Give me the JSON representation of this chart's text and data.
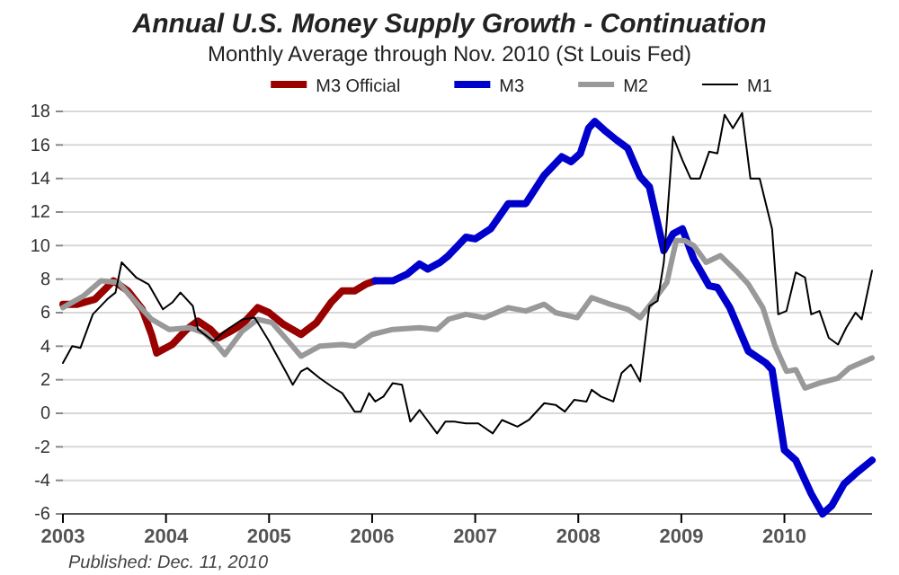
{
  "chart_data": {
    "type": "line",
    "title": "Annual U.S. Money Supply Growth - Continuation",
    "subtitle": "Monthly Average through Nov. 2010  (St Louis Fed)",
    "annotations": [
      "Published: Dec. 11, 2010"
    ],
    "xlim": [
      2003,
      2010.85
    ],
    "xticks": [
      {
        "value": 2003,
        "label": "2003"
      },
      {
        "value": 2004,
        "label": "2004"
      },
      {
        "value": 2005,
        "label": "2005"
      },
      {
        "value": 2006,
        "label": "2006"
      },
      {
        "value": 2007,
        "label": "2007"
      },
      {
        "value": 2008,
        "label": "2008"
      },
      {
        "value": 2009,
        "label": "2009"
      },
      {
        "value": 2010,
        "label": "2010"
      }
    ],
    "ylim": [
      -6,
      18
    ],
    "yticks": [
      -6,
      -4,
      -2,
      0,
      2,
      4,
      6,
      8,
      10,
      12,
      14,
      16,
      18
    ],
    "grid": "y",
    "legend": "top",
    "marker": "none",
    "series": [
      {
        "name": "M3 Official",
        "color": "#990000",
        "x": [
          2003.0,
          2003.14,
          2003.31,
          2003.49,
          2003.63,
          2003.77,
          2003.86,
          2003.91,
          2004.06,
          2004.2,
          2004.31,
          2004.43,
          2004.51,
          2004.63,
          2004.74,
          2004.89,
          2005.0,
          2005.14,
          2005.31,
          2005.46,
          2005.6,
          2005.71,
          2005.83,
          2005.94,
          2006.03
        ],
        "values": [
          6.5,
          6.5,
          6.8,
          7.9,
          7.3,
          6.2,
          4.7,
          3.6,
          4.1,
          5.0,
          5.5,
          5.0,
          4.5,
          4.9,
          5.3,
          6.3,
          6.0,
          5.3,
          4.7,
          5.4,
          6.6,
          7.3,
          7.3,
          7.7,
          7.9
        ]
      },
      {
        "name": "M3",
        "color": "#0000cc",
        "x": [
          2006.03,
          2006.2,
          2006.34,
          2006.46,
          2006.54,
          2006.66,
          2006.74,
          2006.91,
          2007.0,
          2007.15,
          2007.32,
          2007.49,
          2007.67,
          2007.84,
          2007.93,
          2008.02,
          2008.1,
          2008.16,
          2008.25,
          2008.37,
          2008.48,
          2008.6,
          2008.69,
          2008.83,
          2008.92,
          2009.01,
          2009.12,
          2009.27,
          2009.35,
          2009.47,
          2009.65,
          2009.82,
          2009.88,
          2010.0,
          2010.11,
          2010.26,
          2010.37,
          2010.46,
          2010.58,
          2010.69,
          2010.85
        ],
        "values": [
          7.9,
          7.9,
          8.3,
          8.9,
          8.6,
          9.0,
          9.4,
          10.5,
          10.4,
          11.0,
          12.5,
          12.5,
          14.2,
          15.3,
          15.0,
          15.5,
          17.0,
          17.4,
          16.9,
          16.3,
          15.8,
          14.1,
          13.5,
          9.7,
          10.7,
          11.0,
          9.2,
          7.6,
          7.5,
          6.3,
          3.7,
          3.0,
          2.6,
          -2.2,
          -2.8,
          -4.8,
          -6.0,
          -5.5,
          -4.2,
          -3.6,
          -2.8
        ]
      },
      {
        "name": "M2",
        "color": "#999999",
        "x": [
          2003.0,
          2003.2,
          2003.37,
          2003.54,
          2003.71,
          2003.86,
          2004.03,
          2004.23,
          2004.37,
          2004.49,
          2004.57,
          2004.74,
          2004.89,
          2005.03,
          2005.2,
          2005.31,
          2005.49,
          2005.71,
          2005.83,
          2006.0,
          2006.2,
          2006.46,
          2006.63,
          2006.74,
          2006.91,
          2007.09,
          2007.32,
          2007.49,
          2007.67,
          2007.78,
          2007.99,
          2008.13,
          2008.31,
          2008.48,
          2008.6,
          2008.74,
          2008.86,
          2008.95,
          2009.03,
          2009.12,
          2009.24,
          2009.38,
          2009.53,
          2009.65,
          2009.79,
          2009.91,
          2010.02,
          2010.11,
          2010.2,
          2010.34,
          2010.52,
          2010.63,
          2010.85
        ],
        "values": [
          6.3,
          7.0,
          7.9,
          7.8,
          6.6,
          5.6,
          5.0,
          5.1,
          4.8,
          4.1,
          3.5,
          4.9,
          5.6,
          5.4,
          4.2,
          3.4,
          4.0,
          4.1,
          4.0,
          4.7,
          5.0,
          5.1,
          5.0,
          5.6,
          5.9,
          5.7,
          6.3,
          6.1,
          6.5,
          6.0,
          5.7,
          6.9,
          6.5,
          6.2,
          5.7,
          6.8,
          7.8,
          10.3,
          10.3,
          10.0,
          9.0,
          9.4,
          8.5,
          7.7,
          6.3,
          4.0,
          2.5,
          2.6,
          1.5,
          1.8,
          2.1,
          2.7,
          3.3
        ]
      },
      {
        "name": "M1",
        "color": "#000000",
        "x": [
          2003.0,
          2003.09,
          2003.17,
          2003.29,
          2003.43,
          2003.51,
          2003.57,
          2003.71,
          2003.83,
          2003.97,
          2004.06,
          2004.14,
          2004.26,
          2004.31,
          2004.46,
          2004.57,
          2004.74,
          2004.86,
          2005.0,
          2005.17,
          2005.23,
          2005.31,
          2005.37,
          2005.49,
          2005.63,
          2005.71,
          2005.83,
          2005.89,
          2005.97,
          2006.03,
          2006.11,
          2006.2,
          2006.29,
          2006.37,
          2006.46,
          2006.63,
          2006.71,
          2006.8,
          2006.91,
          2007.03,
          2007.17,
          2007.26,
          2007.41,
          2007.52,
          2007.67,
          2007.78,
          2007.87,
          2007.96,
          2008.08,
          2008.13,
          2008.22,
          2008.34,
          2008.42,
          2008.51,
          2008.6,
          2008.69,
          2008.77,
          2008.83,
          2008.92,
          2009.01,
          2009.09,
          2009.18,
          2009.27,
          2009.35,
          2009.42,
          2009.5,
          2009.59,
          2009.67,
          2009.76,
          2009.88,
          2009.94,
          2010.02,
          2010.11,
          2010.2,
          2010.26,
          2010.34,
          2010.43,
          2010.52,
          2010.6,
          2010.69,
          2010.75,
          2010.85
        ],
        "values": [
          3.0,
          4.0,
          3.9,
          5.9,
          6.8,
          7.2,
          9.0,
          8.1,
          7.7,
          6.2,
          6.6,
          7.2,
          6.4,
          5.0,
          4.3,
          4.9,
          5.6,
          5.7,
          4.3,
          2.4,
          1.7,
          2.5,
          2.7,
          2.1,
          1.5,
          1.2,
          0.1,
          0.1,
          1.2,
          0.7,
          1.0,
          1.8,
          1.7,
          -0.5,
          0.2,
          -1.2,
          -0.5,
          -0.5,
          -0.6,
          -0.6,
          -1.2,
          -0.4,
          -0.8,
          -0.4,
          0.6,
          0.5,
          0.1,
          0.8,
          0.7,
          1.4,
          1.0,
          0.7,
          2.4,
          2.9,
          1.9,
          6.4,
          6.7,
          9.0,
          16.5,
          15.1,
          14.0,
          14.0,
          15.6,
          15.5,
          17.8,
          17.0,
          17.9,
          14.0,
          14.0,
          11.0,
          5.9,
          6.1,
          8.4,
          8.1,
          5.9,
          6.1,
          4.5,
          4.1,
          5.1,
          6.0,
          5.6,
          8.5
        ]
      }
    ]
  }
}
